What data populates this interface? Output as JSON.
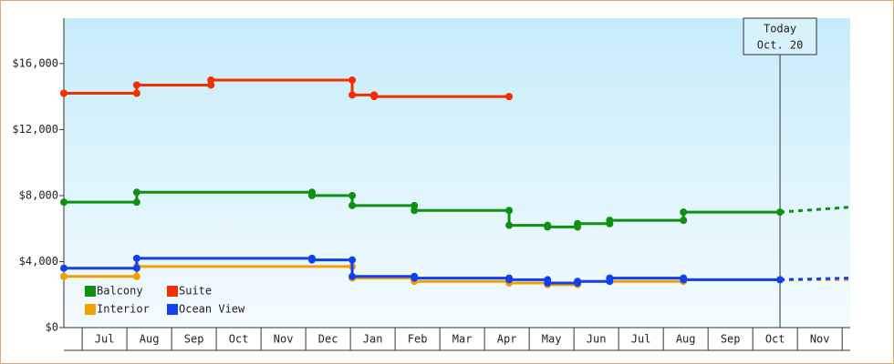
{
  "chart_data": {
    "type": "line",
    "step": true,
    "xlim": [
      -0.41,
      17.18
    ],
    "xticks": [
      {
        "value": 0.5,
        "label": "Jul"
      },
      {
        "value": 1.5,
        "label": "Aug"
      },
      {
        "value": 2.5,
        "label": "Sep"
      },
      {
        "value": 3.5,
        "label": "Oct"
      },
      {
        "value": 4.5,
        "label": "Nov"
      },
      {
        "value": 5.5,
        "label": "Dec"
      },
      {
        "value": 6.5,
        "label": "Jan"
      },
      {
        "value": 7.5,
        "label": "Feb"
      },
      {
        "value": 8.5,
        "label": "Mar"
      },
      {
        "value": 9.5,
        "label": "Apr"
      },
      {
        "value": 10.5,
        "label": "May"
      },
      {
        "value": 11.5,
        "label": "Jun"
      },
      {
        "value": 12.5,
        "label": "Jul"
      },
      {
        "value": 13.5,
        "label": "Aug"
      },
      {
        "value": 14.5,
        "label": "Sep"
      },
      {
        "value": 15.5,
        "label": "Oct"
      },
      {
        "value": 16.5,
        "label": "Nov"
      }
    ],
    "ylim": [
      0,
      18750
    ],
    "yticks": [
      {
        "value": 0,
        "label": "$0"
      },
      {
        "value": 4000,
        "label": "$4,000"
      },
      {
        "value": 8000,
        "label": "$8,000"
      },
      {
        "value": 12000,
        "label": "$12,000"
      },
      {
        "value": 16000,
        "label": "$16,000"
      }
    ],
    "annotation": {
      "x": 15.61,
      "lines": [
        "Today",
        "Oct. 20"
      ]
    },
    "series": [
      {
        "name": "Balcony",
        "color": "#109010",
        "x": [
          -0.41,
          1.22,
          1.22,
          5.14,
          5.14,
          6.04,
          6.04,
          7.43,
          7.43,
          9.55,
          9.55,
          10.41,
          10.41,
          11.08,
          11.08,
          11.8,
          11.8,
          13.45,
          13.45,
          15.61
        ],
        "values": [
          7600,
          7600,
          8200,
          8200,
          8000,
          8000,
          7400,
          7400,
          7100,
          7100,
          6200,
          6200,
          6100,
          6100,
          6300,
          6300,
          6500,
          6500,
          7000,
          7000
        ],
        "forecast_x": [
          15.61,
          17.18
        ],
        "forecast_values": [
          7000,
          7300
        ]
      },
      {
        "name": "Suite",
        "color": "#f03000",
        "x": [
          -0.41,
          1.22,
          1.22,
          2.88,
          2.88,
          6.04,
          6.04,
          6.53,
          6.53,
          9.55
        ],
        "values": [
          14200,
          14200,
          14700,
          14700,
          15000,
          15000,
          14100,
          14100,
          14000,
          14000
        ]
      },
      {
        "name": "Interior",
        "color": "#f0a000",
        "x": [
          -0.41,
          1.22,
          1.22,
          6.04,
          6.04,
          7.43,
          7.43,
          9.55,
          9.55,
          10.41,
          10.41,
          11.08,
          11.08,
          13.45,
          13.45,
          15.61
        ],
        "values": [
          3100,
          3100,
          3700,
          3700,
          3000,
          3000,
          2800,
          2800,
          2700,
          2700,
          2600,
          2600,
          2800,
          2800,
          2900,
          2900
        ],
        "forecast_x": [
          15.61,
          17.18
        ],
        "forecast_values": [
          2900,
          2900
        ]
      },
      {
        "name": "Ocean View",
        "color": "#1040f0",
        "x": [
          -0.41,
          1.22,
          1.22,
          5.14,
          5.14,
          6.04,
          6.04,
          7.43,
          7.43,
          9.55,
          9.55,
          10.41,
          10.41,
          11.08,
          11.08,
          11.8,
          11.8,
          13.45,
          13.45,
          15.61
        ],
        "values": [
          3600,
          3600,
          4200,
          4200,
          4100,
          4100,
          3100,
          3100,
          3000,
          3000,
          2900,
          2900,
          2700,
          2700,
          2800,
          2800,
          3000,
          3000,
          2900,
          2900
        ],
        "forecast_x": [
          15.61,
          17.18
        ],
        "forecast_values": [
          2900,
          3000
        ]
      }
    ]
  }
}
